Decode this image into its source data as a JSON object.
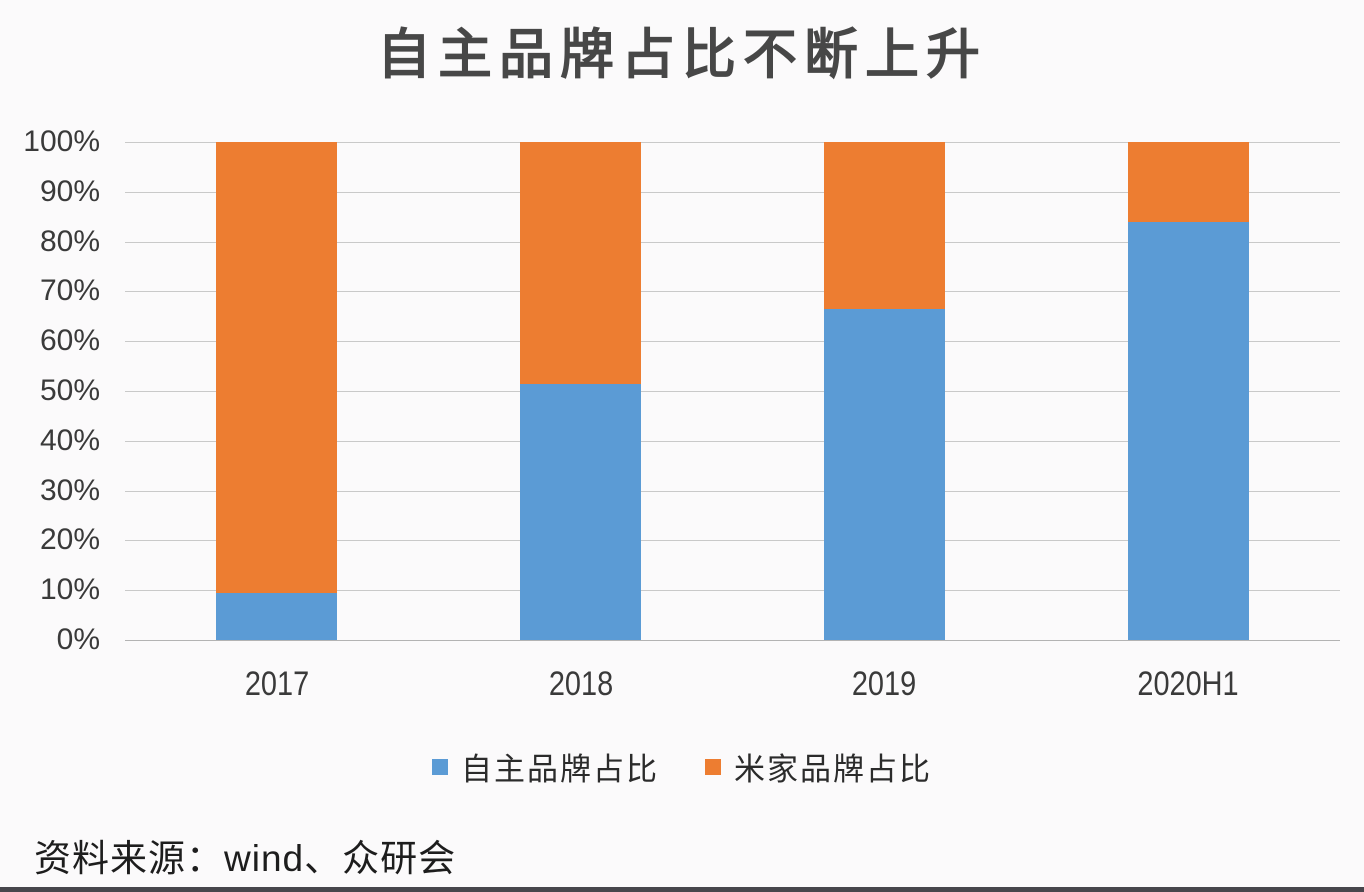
{
  "title": "自主品牌占比不断上升",
  "source_note": "资料来源：wind、众研会",
  "chart_data": {
    "type": "bar",
    "stacked": true,
    "percent_stacked": true,
    "title": "自主品牌占比不断上升",
    "categories": [
      "2017",
      "2018",
      "2019",
      "2020H1"
    ],
    "series": [
      {
        "name": "自主品牌占比",
        "color": "#5B9BD5",
        "values": [
          9.5,
          51.5,
          66.5,
          84
        ]
      },
      {
        "name": "米家品牌占比",
        "color": "#ED7D31",
        "values": [
          90.5,
          48.5,
          33.5,
          16
        ]
      }
    ],
    "xlabel": "",
    "ylabel": "",
    "ylim": [
      0,
      100
    ],
    "y_ticks": [
      0,
      10,
      20,
      30,
      40,
      50,
      60,
      70,
      80,
      90,
      100
    ],
    "y_tick_suffix": "%",
    "grid": "horizontal",
    "legend_position": "bottom",
    "source": "资料来源：wind、众研会"
  }
}
